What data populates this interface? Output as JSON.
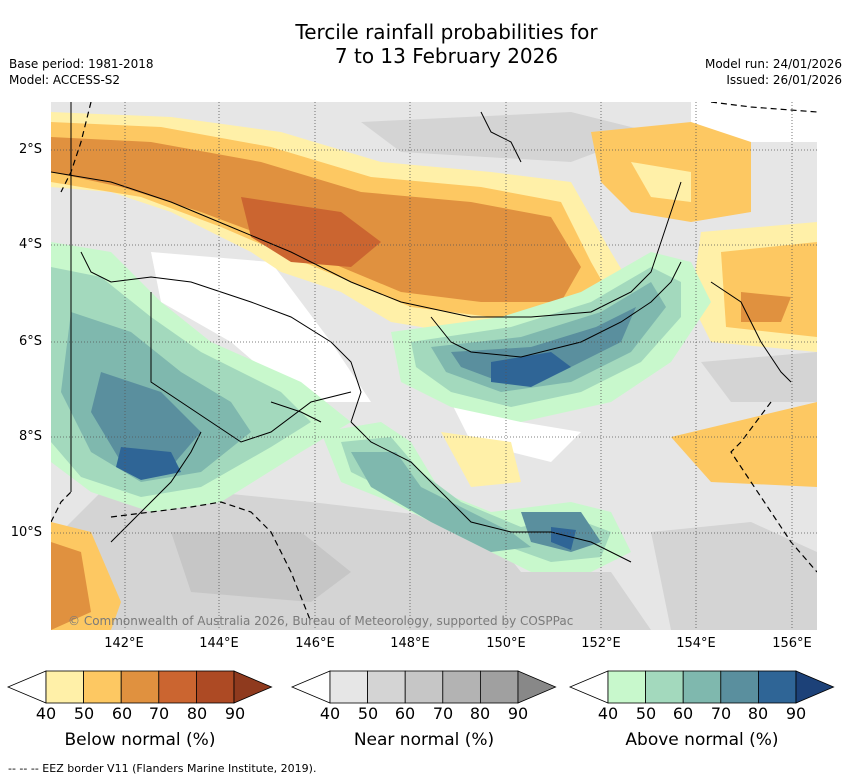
{
  "title": {
    "line1": "Tercile rainfall probabilities for",
    "line2": "7 to 13 February 2026"
  },
  "meta": {
    "base_period": "Base period: 1981-2018",
    "model": "Model: ACCESS-S2",
    "model_run": "Model run: 24/01/2026",
    "issued": "Issued: 26/01/2026"
  },
  "map": {
    "lat_labels": [
      "2°S",
      "4°S",
      "6°S",
      "8°S",
      "10°S"
    ],
    "lon_labels": [
      "142°E",
      "144°E",
      "146°E",
      "148°E",
      "150°E",
      "152°E",
      "154°E",
      "156°E"
    ],
    "copyright": "© Commonwealth of Australia 2026, Bureau of Meteorology, supported by COSPPac"
  },
  "legend": {
    "below": {
      "label": "Below normal (%)",
      "ticks": [
        "40",
        "50",
        "60",
        "70",
        "80",
        "90"
      ],
      "colors": [
        "#fff0a8",
        "#fdc862",
        "#e0913f",
        "#cb6530",
        "#ad4a24",
        "#8f3a1e"
      ]
    },
    "near": {
      "label": "Near normal (%)",
      "ticks": [
        "40",
        "50",
        "60",
        "70",
        "80",
        "90"
      ],
      "colors": [
        "#e6e6e6",
        "#d4d4d4",
        "#c6c6c6",
        "#b3b3b3",
        "#a0a0a0",
        "#888888"
      ]
    },
    "above": {
      "label": "Above normal (%)",
      "ticks": [
        "40",
        "50",
        "60",
        "70",
        "80",
        "90"
      ],
      "colors": [
        "#c8f8cc",
        "#a3d9bd",
        "#7fb8ae",
        "#5a8f9e",
        "#2f6596",
        "#1c4178"
      ]
    }
  },
  "footer": "-- -- -- EEZ border V11 (Flanders Marine Institute, 2019)."
}
